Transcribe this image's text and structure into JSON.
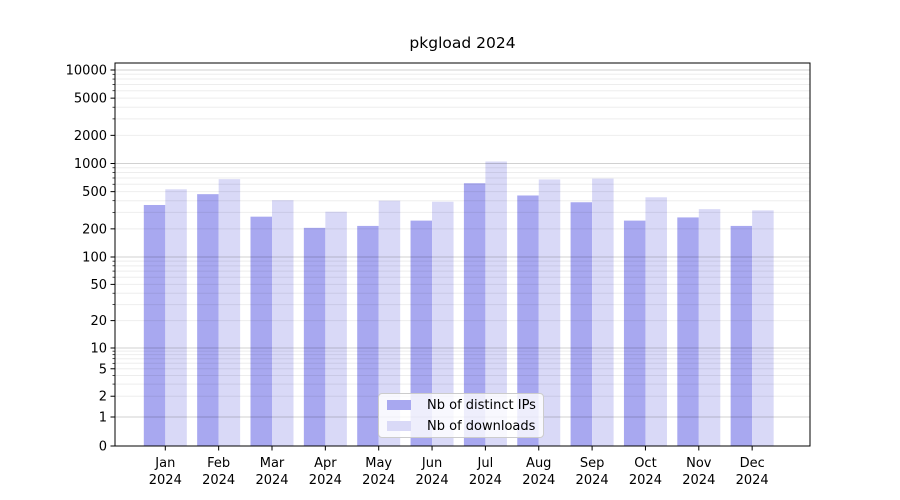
{
  "title": "pkgload 2024",
  "chart_data": {
    "type": "bar",
    "title": "pkgload 2024",
    "categories": [
      "Jan",
      "Feb",
      "Mar",
      "Apr",
      "May",
      "Jun",
      "Jul",
      "Aug",
      "Sep",
      "Oct",
      "Nov",
      "Dec"
    ],
    "category_year": "2024",
    "series": [
      {
        "name": "Nb of distinct IPs",
        "color": "#a8a8f0",
        "values": [
          360,
          470,
          270,
          205,
          215,
          245,
          615,
          455,
          385,
          245,
          265,
          215
        ]
      },
      {
        "name": "Nb of downloads",
        "color": "#d9d9f7",
        "values": [
          530,
          680,
          405,
          305,
          400,
          390,
          1050,
          675,
          690,
          435,
          325,
          315
        ]
      }
    ],
    "xlabel": "",
    "ylabel": "",
    "yscale": "log (with 0 baseline)",
    "ylim": [
      0,
      11000
    ],
    "yticks": [
      10000,
      5000,
      2000,
      1000,
      500,
      200,
      100,
      50,
      20,
      10,
      5,
      2,
      1,
      0
    ],
    "grid": "horizontal major+minor",
    "legend_position": "inside bottom-center"
  },
  "legend": {
    "items": [
      {
        "label": "Nb of distinct IPs",
        "color": "#a8a8f0"
      },
      {
        "label": "Nb of downloads",
        "color": "#d9d9f7"
      }
    ]
  }
}
